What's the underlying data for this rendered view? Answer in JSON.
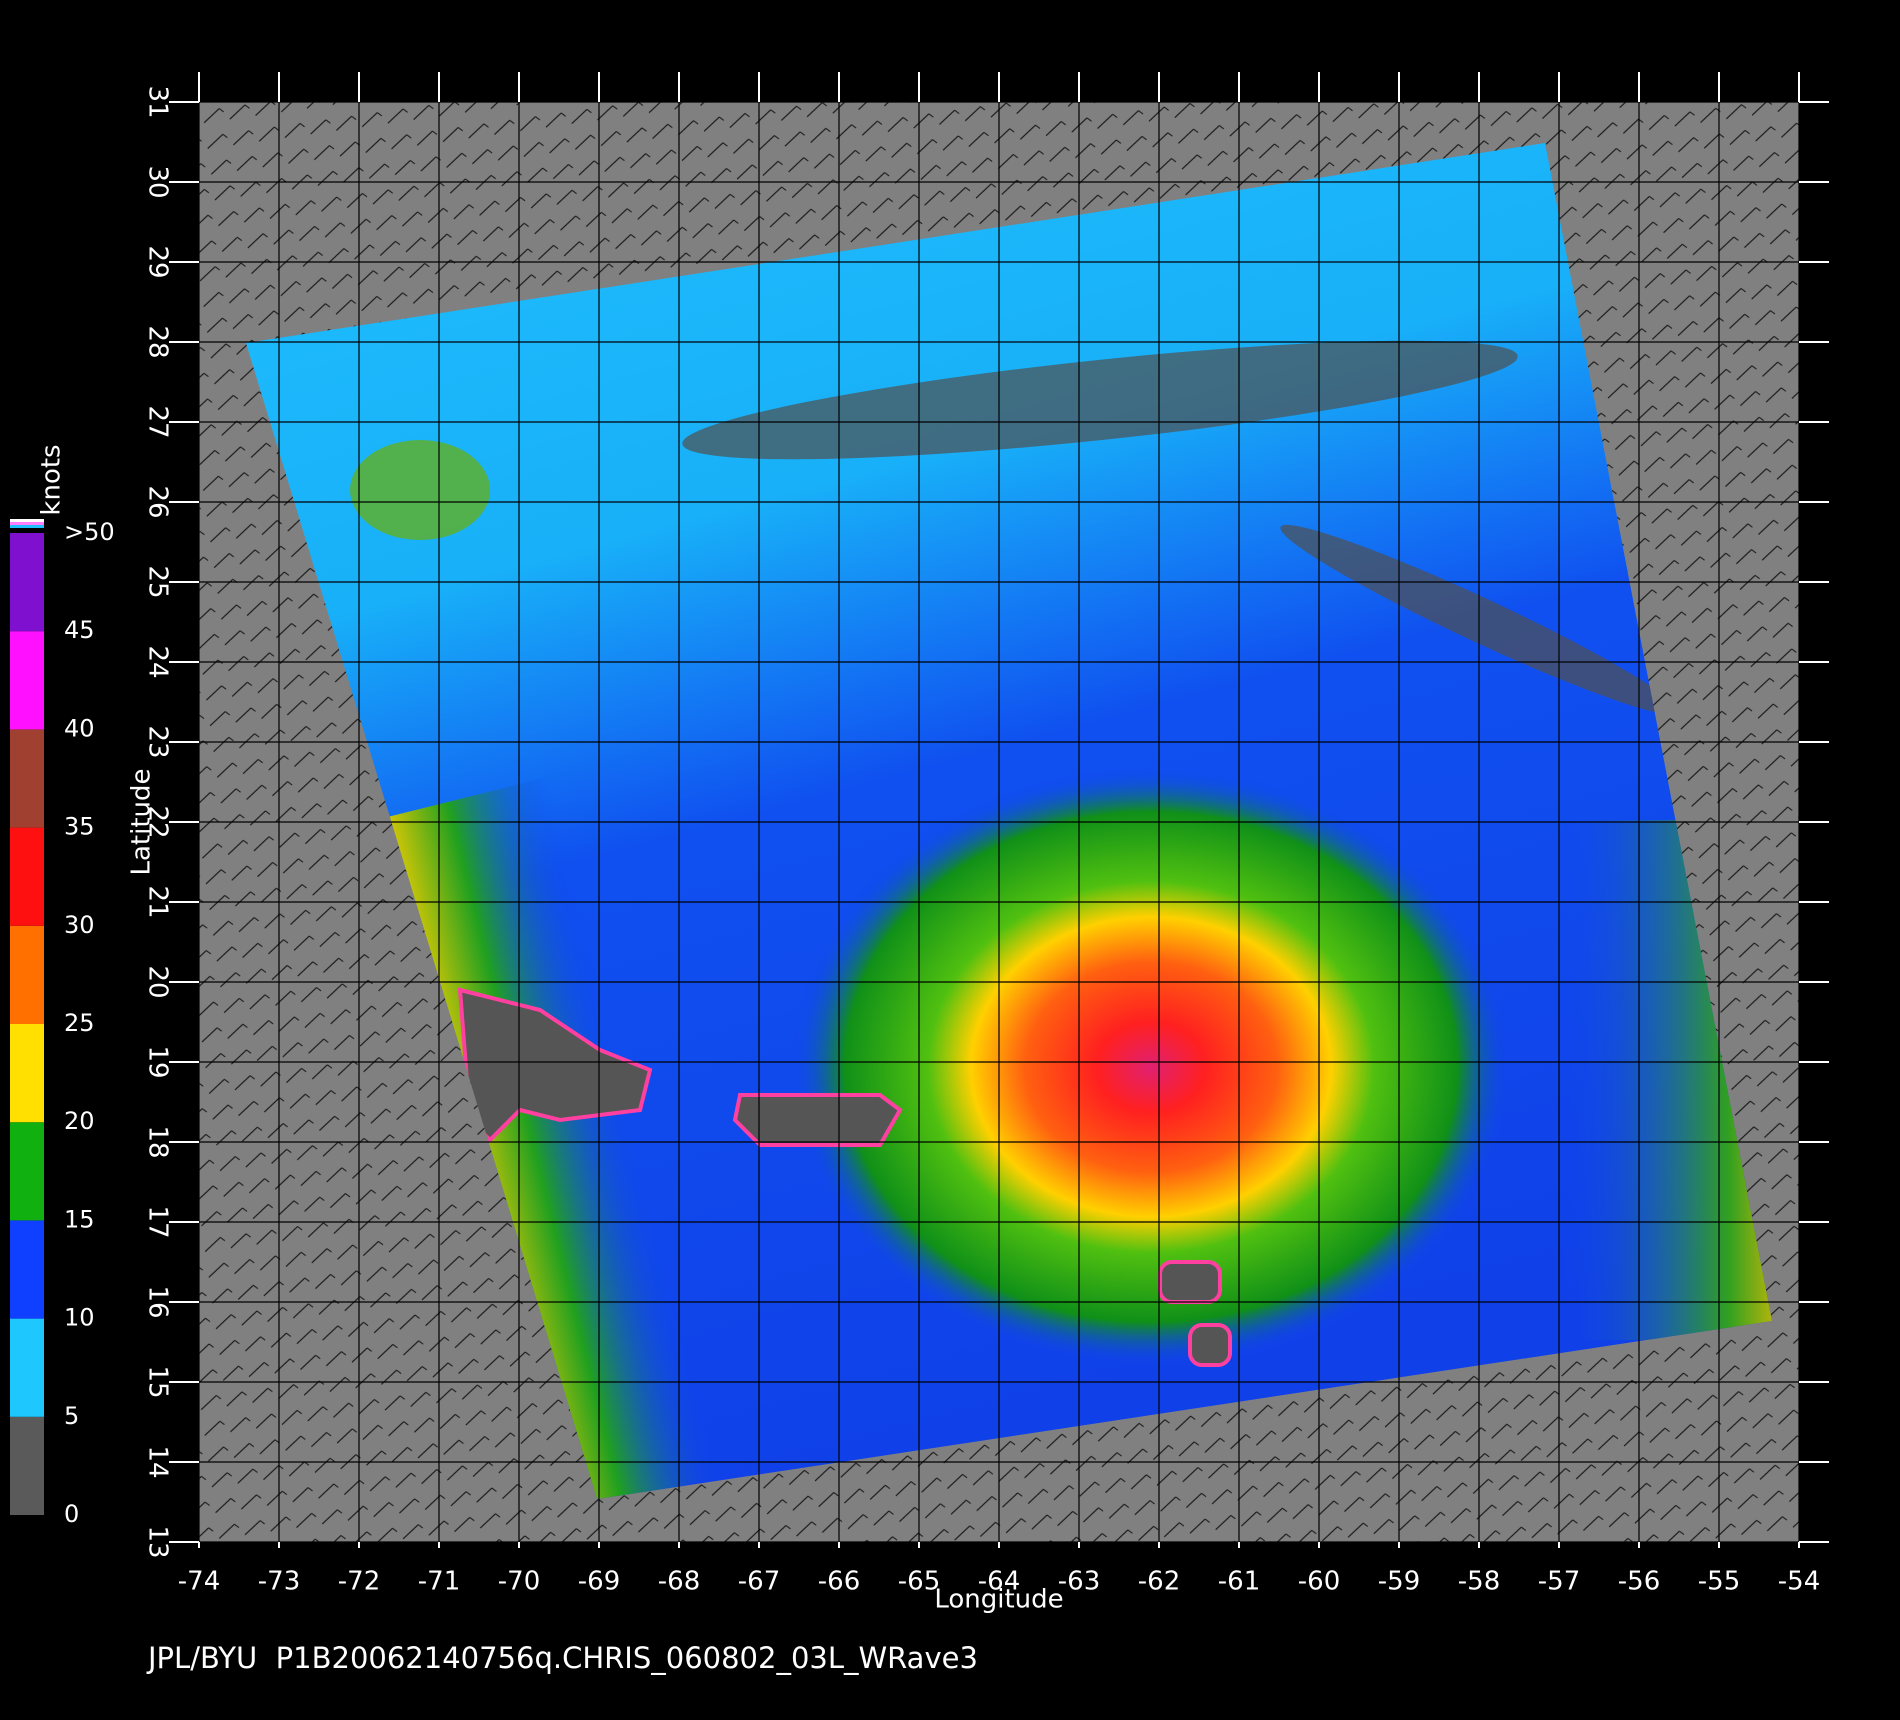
{
  "map": {
    "xlabel": "Longitude",
    "ylabel": "Latitude",
    "xlim": [
      -74,
      -54
    ],
    "ylim": [
      13,
      31
    ],
    "xticks": [
      -74,
      -73,
      -72,
      -71,
      -70,
      -69,
      -68,
      -67,
      -66,
      -65,
      -64,
      -63,
      -62,
      -61,
      -60,
      -59,
      -58,
      -57,
      -56,
      -55,
      -54
    ],
    "yticks": [
      13,
      14,
      15,
      16,
      17,
      18,
      19,
      20,
      21,
      22,
      23,
      24,
      25,
      26,
      27,
      28,
      29,
      30,
      31
    ],
    "colorbar": {
      "label": "knots",
      "lim": [
        0,
        50
      ],
      "ticks": [
        0,
        5,
        10,
        15,
        20,
        25,
        30,
        35,
        40,
        45,
        {
          "value": 50,
          "label": ">50"
        }
      ],
      "colors": [
        "#5a5a5a",
        "#1ec8ff",
        "#1040ff",
        "#10b010",
        "#ffe000",
        "#ff7000",
        "#ff1010",
        "#a04030",
        "#ff10ff",
        "#8010d0"
      ]
    },
    "footer": "JPL/BYU  P1B20062140756q.CHRIS_060802_03L_WRave3"
  }
}
